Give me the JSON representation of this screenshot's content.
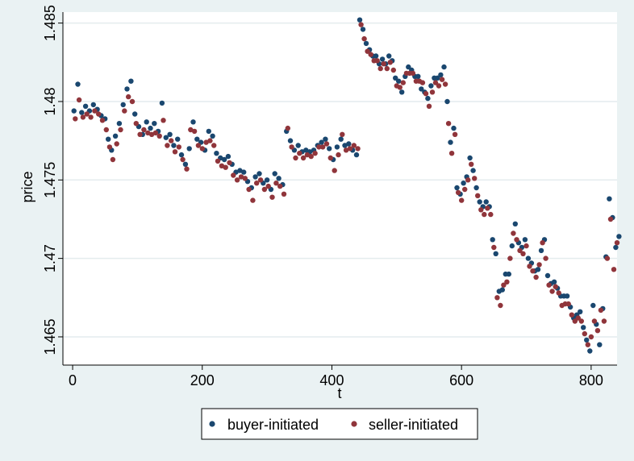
{
  "chart_data": {
    "type": "scatter",
    "xlabel": "t",
    "ylabel": "price",
    "xlim": [
      -15,
      840
    ],
    "ylim": [
      1.4632,
      1.4857
    ],
    "xticks": [
      0,
      200,
      400,
      600,
      800
    ],
    "yticks": [
      1.465,
      1.47,
      1.475,
      1.48,
      1.485
    ],
    "xtick_labels": [
      "0",
      "200",
      "400",
      "600",
      "800"
    ],
    "ytick_labels": [
      "1.465",
      "1.47",
      "1.475",
      "1.48",
      "1.485"
    ],
    "grid": "horizontal",
    "legend": "bottom",
    "colors": {
      "background": "#eaf2f3",
      "plot": "#ffffff",
      "grid": "#e4ecee",
      "buyer": "#1a476f",
      "seller": "#90353b"
    },
    "series": [
      {
        "name": "buyer-initiated",
        "color": "#1a476f",
        "points": [
          [
            2,
            1.4794
          ],
          [
            8,
            1.4811
          ],
          [
            14,
            1.4793
          ],
          [
            20,
            1.4797
          ],
          [
            26,
            1.4794
          ],
          [
            32,
            1.4798
          ],
          [
            38,
            1.4795
          ],
          [
            44,
            1.4791
          ],
          [
            50,
            1.4789
          ],
          [
            55,
            1.4776
          ],
          [
            60,
            1.4769
          ],
          [
            66,
            1.4778
          ],
          [
            72,
            1.4786
          ],
          [
            78,
            1.4798
          ],
          [
            84,
            1.4808
          ],
          [
            90,
            1.4813
          ],
          [
            96,
            1.4792
          ],
          [
            102,
            1.4784
          ],
          [
            108,
            1.4779
          ],
          [
            114,
            1.4787
          ],
          [
            120,
            1.4783
          ],
          [
            126,
            1.4786
          ],
          [
            132,
            1.4781
          ],
          [
            138,
            1.4799
          ],
          [
            144,
            1.4777
          ],
          [
            150,
            1.4779
          ],
          [
            156,
            1.4772
          ],
          [
            162,
            1.4776
          ],
          [
            168,
            1.4766
          ],
          [
            174,
            1.476
          ],
          [
            180,
            1.477
          ],
          [
            186,
            1.4787
          ],
          [
            192,
            1.4776
          ],
          [
            198,
            1.4774
          ],
          [
            204,
            1.4769
          ],
          [
            210,
            1.4781
          ],
          [
            216,
            1.4778
          ],
          [
            222,
            1.4767
          ],
          [
            228,
            1.4764
          ],
          [
            234,
            1.4763
          ],
          [
            240,
            1.4765
          ],
          [
            246,
            1.476
          ],
          [
            252,
            1.4755
          ],
          [
            258,
            1.4756
          ],
          [
            264,
            1.4755
          ],
          [
            270,
            1.4749
          ],
          [
            276,
            1.4745
          ],
          [
            282,
            1.4752
          ],
          [
            288,
            1.4754
          ],
          [
            294,
            1.4748
          ],
          [
            300,
            1.475
          ],
          [
            306,
            1.4744
          ],
          [
            312,
            1.4754
          ],
          [
            318,
            1.4751
          ],
          [
            324,
            1.4747
          ],
          [
            330,
            1.4781
          ],
          [
            336,
            1.4775
          ],
          [
            342,
            1.4769
          ],
          [
            348,
            1.4772
          ],
          [
            354,
            1.4768
          ],
          [
            360,
            1.4769
          ],
          [
            366,
            1.4768
          ],
          [
            372,
            1.4769
          ],
          [
            378,
            1.4772
          ],
          [
            384,
            1.4774
          ],
          [
            390,
            1.4776
          ],
          [
            396,
            1.477
          ],
          [
            402,
            1.4763
          ],
          [
            408,
            1.4771
          ],
          [
            414,
            1.4776
          ],
          [
            420,
            1.4772
          ],
          [
            426,
            1.4773
          ],
          [
            432,
            1.4769
          ],
          [
            438,
            1.4766
          ],
          [
            443,
            1.4852
          ],
          [
            448,
            1.4846
          ],
          [
            453,
            1.4837
          ],
          [
            458,
            1.4833
          ],
          [
            463,
            1.4829
          ],
          [
            468,
            1.4829
          ],
          [
            473,
            1.4824
          ],
          [
            478,
            1.4827
          ],
          [
            483,
            1.4824
          ],
          [
            488,
            1.4829
          ],
          [
            493,
            1.4826
          ],
          [
            498,
            1.4815
          ],
          [
            503,
            1.4813
          ],
          [
            508,
            1.4806
          ],
          [
            513,
            1.4816
          ],
          [
            518,
            1.4822
          ],
          [
            523,
            1.482
          ],
          [
            528,
            1.4816
          ],
          [
            533,
            1.4816
          ],
          [
            538,
            1.4808
          ],
          [
            543,
            1.4806
          ],
          [
            548,
            1.4802
          ],
          [
            553,
            1.481
          ],
          [
            558,
            1.4815
          ],
          [
            563,
            1.4815
          ],
          [
            568,
            1.4817
          ],
          [
            573,
            1.4822
          ],
          [
            578,
            1.48
          ],
          [
            583,
            1.4774
          ],
          [
            588,
            1.4783
          ],
          [
            593,
            1.4745
          ],
          [
            598,
            1.4741
          ],
          [
            603,
            1.4748
          ],
          [
            608,
            1.4752
          ],
          [
            613,
            1.4764
          ],
          [
            618,
            1.4756
          ],
          [
            623,
            1.4745
          ],
          [
            628,
            1.4736
          ],
          [
            633,
            1.4733
          ],
          [
            638,
            1.4736
          ],
          [
            643,
            1.4733
          ],
          [
            648,
            1.4712
          ],
          [
            653,
            1.4703
          ],
          [
            658,
            1.4679
          ],
          [
            663,
            1.468
          ],
          [
            668,
            1.469
          ],
          [
            673,
            1.469
          ],
          [
            678,
            1.4708
          ],
          [
            683,
            1.4722
          ],
          [
            688,
            1.471
          ],
          [
            693,
            1.4707
          ],
          [
            698,
            1.4712
          ],
          [
            703,
            1.47
          ],
          [
            708,
            1.4697
          ],
          [
            713,
            1.4692
          ],
          [
            718,
            1.4693
          ],
          [
            723,
            1.4705
          ],
          [
            728,
            1.4712
          ],
          [
            733,
            1.4689
          ],
          [
            738,
            1.4684
          ],
          [
            743,
            1.4685
          ],
          [
            748,
            1.4681
          ],
          [
            753,
            1.4676
          ],
          [
            758,
            1.4676
          ],
          [
            763,
            1.4676
          ],
          [
            768,
            1.4669
          ],
          [
            773,
            1.4662
          ],
          [
            778,
            1.4664
          ],
          [
            783,
            1.4666
          ],
          [
            788,
            1.4656
          ],
          [
            793,
            1.4648
          ],
          [
            798,
            1.4641
          ],
          [
            803,
            1.467
          ],
          [
            808,
            1.4658
          ],
          [
            813,
            1.4645
          ],
          [
            818,
            1.4668
          ],
          [
            823,
            1.4701
          ],
          [
            828,
            1.4738
          ],
          [
            833,
            1.4726
          ],
          [
            838,
            1.4707
          ],
          [
            843,
            1.4714
          ]
        ]
      },
      {
        "name": "seller-initiated",
        "color": "#90353b",
        "points": [
          [
            4,
            1.4789
          ],
          [
            10,
            1.4801
          ],
          [
            16,
            1.479
          ],
          [
            22,
            1.4792
          ],
          [
            28,
            1.479
          ],
          [
            34,
            1.4794
          ],
          [
            40,
            1.4792
          ],
          [
            46,
            1.4788
          ],
          [
            52,
            1.4782
          ],
          [
            57,
            1.4771
          ],
          [
            62,
            1.4763
          ],
          [
            68,
            1.4773
          ],
          [
            74,
            1.4782
          ],
          [
            80,
            1.4794
          ],
          [
            86,
            1.4803
          ],
          [
            92,
            1.48
          ],
          [
            98,
            1.4786
          ],
          [
            104,
            1.4779
          ],
          [
            110,
            1.4782
          ],
          [
            116,
            1.478
          ],
          [
            122,
            1.4779
          ],
          [
            128,
            1.478
          ],
          [
            134,
            1.4778
          ],
          [
            140,
            1.4788
          ],
          [
            146,
            1.4772
          ],
          [
            152,
            1.4775
          ],
          [
            158,
            1.4768
          ],
          [
            164,
            1.4771
          ],
          [
            170,
            1.4763
          ],
          [
            176,
            1.4757
          ],
          [
            182,
            1.4782
          ],
          [
            188,
            1.4781
          ],
          [
            194,
            1.4772
          ],
          [
            200,
            1.477
          ],
          [
            206,
            1.4774
          ],
          [
            212,
            1.4775
          ],
          [
            218,
            1.4772
          ],
          [
            224,
            1.4762
          ],
          [
            230,
            1.4759
          ],
          [
            236,
            1.4758
          ],
          [
            242,
            1.4761
          ],
          [
            248,
            1.4753
          ],
          [
            254,
            1.475
          ],
          [
            260,
            1.4752
          ],
          [
            266,
            1.4751
          ],
          [
            272,
            1.4744
          ],
          [
            278,
            1.4737
          ],
          [
            284,
            1.4748
          ],
          [
            290,
            1.475
          ],
          [
            296,
            1.4744
          ],
          [
            302,
            1.4746
          ],
          [
            308,
            1.4739
          ],
          [
            314,
            1.4748
          ],
          [
            320,
            1.4746
          ],
          [
            326,
            1.4741
          ],
          [
            332,
            1.4783
          ],
          [
            338,
            1.4771
          ],
          [
            344,
            1.4764
          ],
          [
            350,
            1.4767
          ],
          [
            356,
            1.4764
          ],
          [
            362,
            1.4766
          ],
          [
            368,
            1.4765
          ],
          [
            374,
            1.4767
          ],
          [
            380,
            1.4771
          ],
          [
            386,
            1.4771
          ],
          [
            392,
            1.4773
          ],
          [
            398,
            1.4764
          ],
          [
            404,
            1.4756
          ],
          [
            410,
            1.4766
          ],
          [
            416,
            1.4779
          ],
          [
            422,
            1.4769
          ],
          [
            428,
            1.477
          ],
          [
            434,
            1.4772
          ],
          [
            440,
            1.477
          ],
          [
            445,
            1.4849
          ],
          [
            450,
            1.484
          ],
          [
            455,
            1.4832
          ],
          [
            460,
            1.483
          ],
          [
            465,
            1.4826
          ],
          [
            470,
            1.4826
          ],
          [
            475,
            1.4821
          ],
          [
            480,
            1.4824
          ],
          [
            485,
            1.4821
          ],
          [
            490,
            1.4825
          ],
          [
            495,
            1.482
          ],
          [
            500,
            1.481
          ],
          [
            505,
            1.4809
          ],
          [
            510,
            1.4812
          ],
          [
            515,
            1.4818
          ],
          [
            520,
            1.4818
          ],
          [
            525,
            1.4818
          ],
          [
            530,
            1.4813
          ],
          [
            535,
            1.4813
          ],
          [
            540,
            1.4812
          ],
          [
            545,
            1.4805
          ],
          [
            550,
            1.4797
          ],
          [
            555,
            1.4806
          ],
          [
            560,
            1.4812
          ],
          [
            565,
            1.481
          ],
          [
            570,
            1.4814
          ],
          [
            575,
            1.4811
          ],
          [
            580,
            1.4786
          ],
          [
            585,
            1.4767
          ],
          [
            590,
            1.4779
          ],
          [
            595,
            1.4742
          ],
          [
            600,
            1.4737
          ],
          [
            605,
            1.4744
          ],
          [
            610,
            1.475
          ],
          [
            615,
            1.476
          ],
          [
            620,
            1.4751
          ],
          [
            625,
            1.474
          ],
          [
            630,
            1.4731
          ],
          [
            635,
            1.4728
          ],
          [
            640,
            1.4732
          ],
          [
            645,
            1.4728
          ],
          [
            650,
            1.4707
          ],
          [
            655,
            1.4675
          ],
          [
            660,
            1.467
          ],
          [
            665,
            1.4683
          ],
          [
            670,
            1.4685
          ],
          [
            675,
            1.47
          ],
          [
            680,
            1.4716
          ],
          [
            685,
            1.4712
          ],
          [
            690,
            1.4705
          ],
          [
            695,
            1.4703
          ],
          [
            700,
            1.4708
          ],
          [
            705,
            1.4695
          ],
          [
            710,
            1.4692
          ],
          [
            715,
            1.4688
          ],
          [
            720,
            1.4696
          ],
          [
            725,
            1.471
          ],
          [
            730,
            1.47
          ],
          [
            735,
            1.4683
          ],
          [
            740,
            1.4679
          ],
          [
            745,
            1.4682
          ],
          [
            750,
            1.4678
          ],
          [
            755,
            1.467
          ],
          [
            760,
            1.4671
          ],
          [
            765,
            1.4671
          ],
          [
            770,
            1.4664
          ],
          [
            775,
            1.466
          ],
          [
            780,
            1.4662
          ],
          [
            785,
            1.466
          ],
          [
            790,
            1.4652
          ],
          [
            795,
            1.4645
          ],
          [
            800,
            1.465
          ],
          [
            805,
            1.466
          ],
          [
            810,
            1.4654
          ],
          [
            815,
            1.4667
          ],
          [
            820,
            1.466
          ],
          [
            825,
            1.47
          ],
          [
            830,
            1.4725
          ],
          [
            835,
            1.4693
          ],
          [
            840,
            1.471
          ]
        ]
      }
    ]
  }
}
